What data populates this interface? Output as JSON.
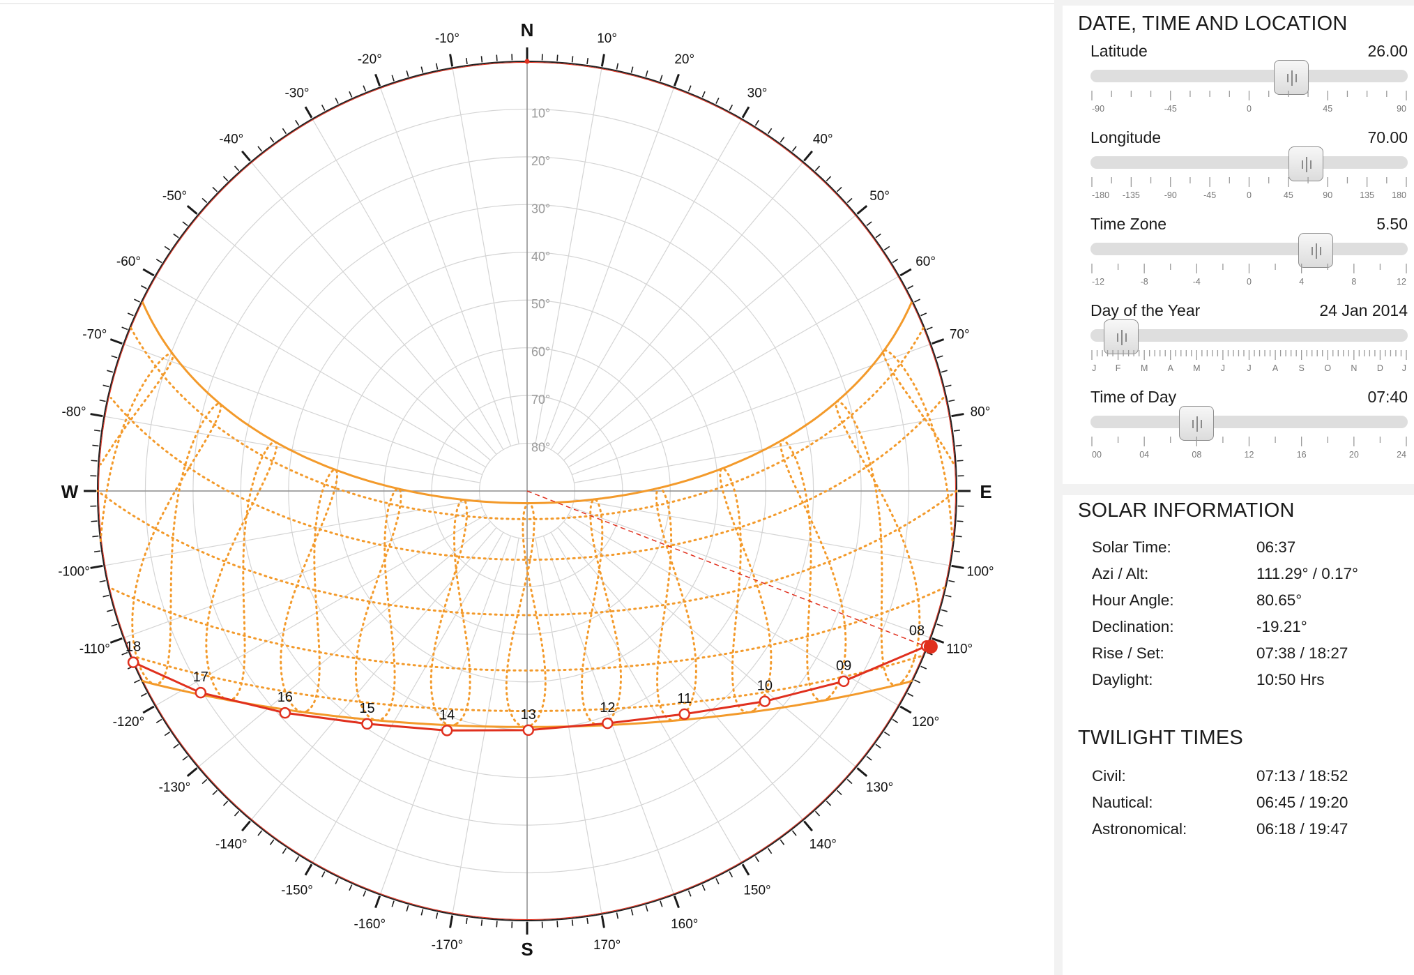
{
  "chart_data": {
    "type": "polar",
    "compass": {
      "north": "N",
      "south": "S",
      "west": "W",
      "east": "E"
    },
    "azimuth_labels": [
      "10°",
      "20°",
      "30°",
      "40°",
      "50°",
      "60°",
      "70°",
      "80°",
      "100°",
      "110°",
      "120°",
      "130°",
      "140°",
      "150°",
      "160°",
      "170°",
      "-10°",
      "-20°",
      "-30°",
      "-40°",
      "-50°",
      "-60°",
      "-70°",
      "-80°",
      "-100°",
      "-110°",
      "-120°",
      "-130°",
      "-140°",
      "-150°",
      "-160°",
      "-170°"
    ],
    "altitude_labels": [
      "10°",
      "20°",
      "30°",
      "40°",
      "50°",
      "60°",
      "70°",
      "80°"
    ],
    "sun_path_today": {
      "color": "#e0301e",
      "hours": [
        {
          "label": "08",
          "azimuth": 111.2,
          "altitude": 0.2
        },
        {
          "label": "09",
          "azimuth": 121.0,
          "altitude": 12.6
        },
        {
          "label": "10",
          "azimuth": 131.5,
          "altitude": 23.5
        },
        {
          "label": "11",
          "azimuth": 144.8,
          "altitude": 32.8
        },
        {
          "label": "12",
          "azimuth": 160.9,
          "altitude": 38.5
        },
        {
          "label": "13",
          "azimuth": 179.7,
          "altitude": 39.9
        },
        {
          "label": "14",
          "azimuth": -161.5,
          "altitude": 37.1
        },
        {
          "label": "15",
          "azimuth": -145.5,
          "altitude": 30.8
        },
        {
          "label": "16",
          "azimuth": -132.5,
          "altitude": 21.2
        },
        {
          "label": "17",
          "azimuth": -121.7,
          "altitude": 9.6
        },
        {
          "label": "18",
          "azimuth": -113.5,
          "altitude": -3.1
        }
      ]
    },
    "summer_solstice_color": "#f39a2b",
    "analemma_color": "#f39a2b",
    "current_sun": {
      "azimuth": 111.29,
      "altitude": 0.17,
      "color": "#e0301e"
    }
  },
  "panel": {
    "controls_title": "DATE, TIME AND LOCATION",
    "sliders": [
      {
        "label": "Latitude",
        "value": "26.00",
        "fraction": 0.644,
        "ticks": [
          "-90",
          "-45",
          "0",
          "45",
          "90"
        ]
      },
      {
        "label": "Longitude",
        "value": "70.00",
        "fraction": 0.694,
        "ticks": [
          "-180",
          "-135",
          "-90",
          "-45",
          "0",
          "45",
          "90",
          "135",
          "180"
        ]
      },
      {
        "label": "Time Zone",
        "value": "5.50",
        "fraction": 0.729,
        "ticks": [
          "-12",
          "-8",
          "-4",
          "0",
          "4",
          "8",
          "12"
        ]
      },
      {
        "label": "Day of the Year",
        "value": "24 Jan 2014",
        "fraction": 0.063,
        "ticks": [
          "J",
          "F",
          "M",
          "A",
          "M",
          "J",
          "J",
          "A",
          "S",
          "O",
          "N",
          "D",
          "J"
        ]
      },
      {
        "label": "Time of Day",
        "value": "07:40",
        "fraction": 0.319,
        "ticks": [
          "00",
          "04",
          "08",
          "12",
          "16",
          "20",
          "24"
        ]
      }
    ],
    "solar_title": "SOLAR INFORMATION",
    "solar": [
      {
        "key": "Solar Time:",
        "value": "06:37"
      },
      {
        "key": "Azi / Alt:",
        "value": "111.29° / 0.17°"
      },
      {
        "key": "Hour Angle:",
        "value": "80.65°"
      },
      {
        "key": "Declination:",
        "value": "-19.21°"
      },
      {
        "key": "Rise / Set:",
        "value": "07:38 / 18:27"
      },
      {
        "key": "Daylight:",
        "value": "10:50 Hrs"
      }
    ],
    "twilight_title": "TWILIGHT TIMES",
    "twilight": [
      {
        "key": "Civil:",
        "value": "07:13 / 18:52"
      },
      {
        "key": "Nautical:",
        "value": "06:45 / 19:20"
      },
      {
        "key": "Astronomical:",
        "value": "06:18 / 19:47"
      }
    ]
  }
}
